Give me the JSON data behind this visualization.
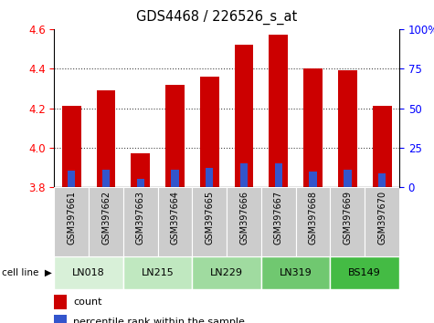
{
  "title": "GDS4468 / 226526_s_at",
  "samples": [
    "GSM397661",
    "GSM397662",
    "GSM397663",
    "GSM397664",
    "GSM397665",
    "GSM397666",
    "GSM397667",
    "GSM397668",
    "GSM397669",
    "GSM397670"
  ],
  "red_tops": [
    4.21,
    4.29,
    3.97,
    4.32,
    4.36,
    4.52,
    4.57,
    4.4,
    4.39,
    4.21
  ],
  "blue_tops": [
    3.885,
    3.89,
    3.845,
    3.89,
    3.9,
    3.92,
    3.92,
    3.882,
    3.888,
    3.872
  ],
  "bar_bottom": 3.8,
  "ylim_left": [
    3.8,
    4.6
  ],
  "ylim_right": [
    0,
    100
  ],
  "yticks_left": [
    3.8,
    4.0,
    4.2,
    4.4,
    4.6
  ],
  "yticks_right": [
    0,
    25,
    50,
    75,
    100
  ],
  "ytick_labels_right": [
    "0",
    "25",
    "50",
    "75",
    "100%"
  ],
  "red_color": "#cc0000",
  "blue_color": "#3355cc",
  "cell_lines": [
    "LN018",
    "LN215",
    "LN229",
    "LN319",
    "BS149"
  ],
  "cell_line_spans": [
    [
      0,
      2
    ],
    [
      2,
      4
    ],
    [
      4,
      6
    ],
    [
      6,
      8
    ],
    [
      8,
      10
    ]
  ],
  "cell_line_colors": [
    "#d8f0d8",
    "#c0e8c0",
    "#a0dba0",
    "#70c870",
    "#44bb44"
  ],
  "bar_width": 0.55,
  "blue_bar_width": 0.22,
  "legend_count_label": "count",
  "legend_pct_label": "percentile rank within the sample",
  "background_color": "#ffffff",
  "plot_bg_color": "#ffffff",
  "grid_color": "#444444",
  "sample_bg_color": "#cccccc"
}
